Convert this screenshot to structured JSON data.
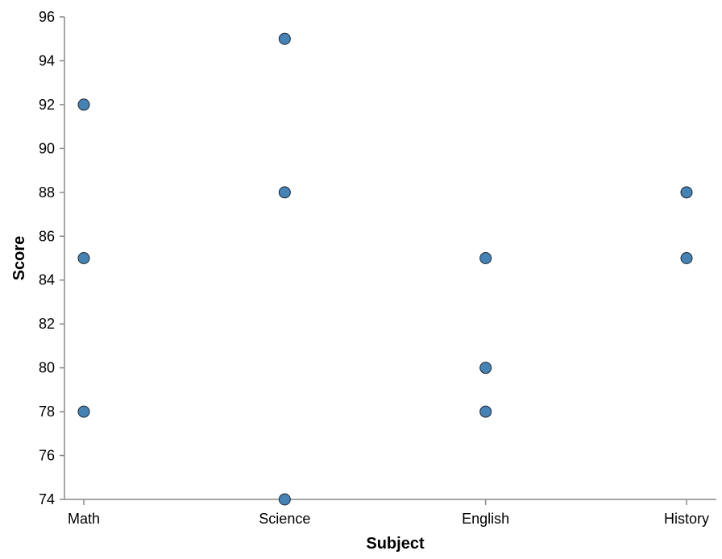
{
  "chart_data": {
    "type": "scatter",
    "title": "",
    "xlabel": "Subject",
    "ylabel": "Score",
    "categories": [
      "Math",
      "Science",
      "English",
      "History"
    ],
    "ylim": [
      74,
      96
    ],
    "yticks": [
      74,
      76,
      78,
      80,
      82,
      84,
      86,
      88,
      90,
      92,
      94,
      96
    ],
    "grid": false,
    "points": [
      {
        "x": "Math",
        "y": 92
      },
      {
        "x": "Math",
        "y": 85
      },
      {
        "x": "Math",
        "y": 78
      },
      {
        "x": "Science",
        "y": 95
      },
      {
        "x": "Science",
        "y": 88
      },
      {
        "x": "Science",
        "y": 74
      },
      {
        "x": "English",
        "y": 85
      },
      {
        "x": "English",
        "y": 80
      },
      {
        "x": "English",
        "y": 78
      },
      {
        "x": "History",
        "y": 88
      },
      {
        "x": "History",
        "y": 85
      }
    ],
    "colors": {
      "point_fill": "#4682b4",
      "point_stroke": "#1f2a36",
      "axis": "#888888"
    }
  }
}
